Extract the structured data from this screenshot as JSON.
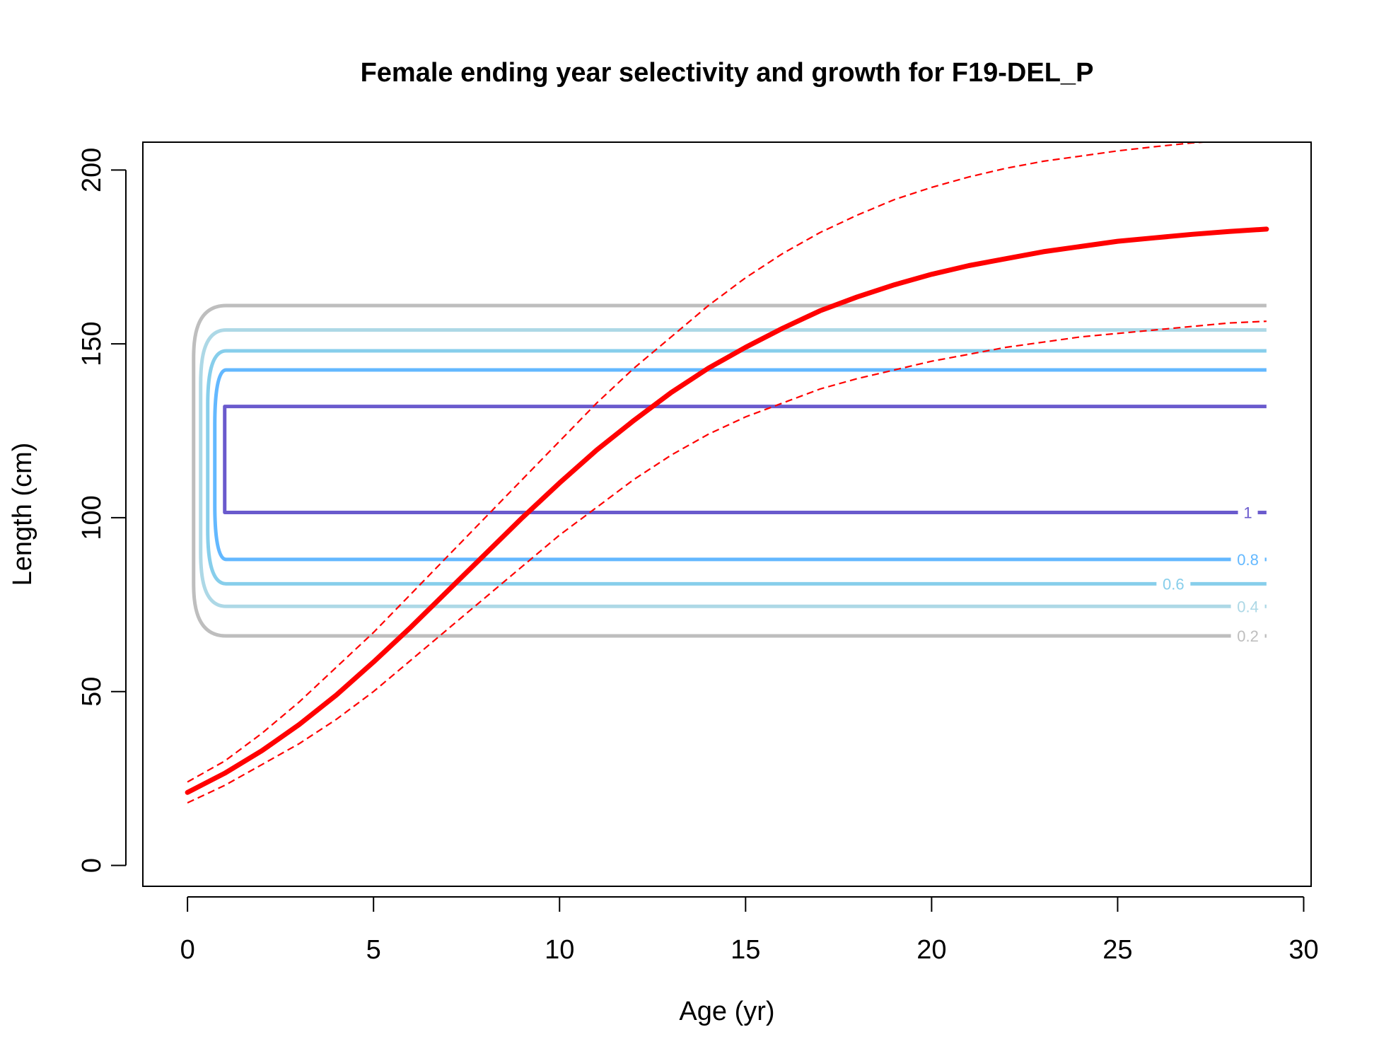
{
  "chart_data": {
    "type": "line",
    "title": "Female ending year selectivity and growth for F19-DEL_P",
    "xlabel": "Age (yr)",
    "ylabel": "Length (cm)",
    "xlim": [
      -1.2,
      30.2
    ],
    "ylim": [
      -6,
      208
    ],
    "xticks": [
      0,
      5,
      10,
      15,
      20,
      25,
      30
    ],
    "yticks": [
      0,
      50,
      100,
      150,
      200
    ],
    "grid": false,
    "growth_curve": {
      "color": "#ff0000",
      "x": [
        0,
        1,
        2,
        3,
        4,
        5,
        6,
        7,
        8,
        9,
        10,
        11,
        12,
        13,
        14,
        15,
        16,
        17,
        18,
        19,
        20,
        21,
        22,
        23,
        24,
        25,
        26,
        27,
        28,
        29
      ],
      "mean": [
        21,
        26.5,
        33,
        40.5,
        49,
        58.5,
        68.5,
        79,
        89.5,
        100,
        110,
        119.5,
        128,
        136,
        143,
        149,
        154.5,
        159.5,
        163.5,
        167,
        170,
        172.5,
        174.5,
        176.5,
        178,
        179.5,
        180.5,
        181.5,
        182.3,
        183
      ],
      "upper": [
        24,
        30,
        38,
        47,
        57,
        67,
        78,
        89,
        100,
        111,
        122,
        133,
        143,
        152,
        161,
        169,
        176,
        182,
        187,
        191.5,
        195,
        198,
        200.5,
        202.5,
        204,
        205.5,
        206.7,
        207.8,
        208.5,
        209
      ],
      "lower": [
        18,
        23,
        29,
        35,
        42,
        50,
        59,
        68,
        77,
        86,
        95,
        103,
        111,
        118,
        124,
        129,
        133,
        137,
        140,
        142.5,
        145,
        147,
        149,
        150.5,
        152,
        153,
        154,
        155,
        156,
        156.5
      ]
    },
    "selectivity_contours": [
      {
        "level": 0.2,
        "label": "0.2",
        "color": "#bebebe",
        "low": 66,
        "high": 161,
        "x_start": 1,
        "x_end": 29,
        "label_x": 28.5
      },
      {
        "level": 0.4,
        "label": "0.4",
        "color": "#add8e6",
        "low": 74.5,
        "high": 154,
        "x_start": 1,
        "x_end": 29,
        "label_x": 28.5
      },
      {
        "level": 0.6,
        "label": "0.6",
        "color": "#87ceeb",
        "low": 81,
        "high": 148,
        "x_start": 1,
        "x_end": 29,
        "label_x": 26.5
      },
      {
        "level": 0.8,
        "label": "0.8",
        "color": "#63b8ff",
        "low": 88,
        "high": 142.5,
        "x_start": 1,
        "x_end": 29,
        "label_x": 28.5
      },
      {
        "level": 1,
        "label": "1",
        "color": "#6a5acd",
        "low": 101.5,
        "high": 132,
        "x_start": 1,
        "x_end": 29,
        "label_x": 28.5
      }
    ]
  }
}
